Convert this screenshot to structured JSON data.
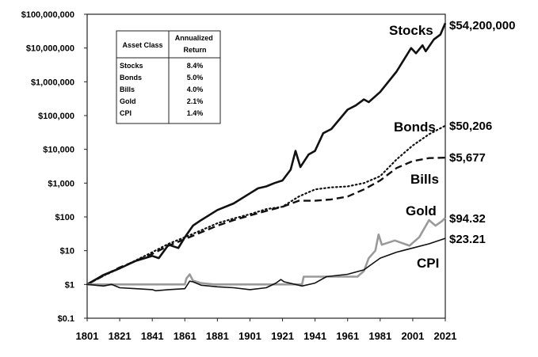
{
  "chart_data": {
    "type": "line",
    "title": "",
    "xlabel": "",
    "ylabel": "",
    "y_scale": "log",
    "ylim": [
      0.1,
      100000000
    ],
    "xlim": [
      1801,
      2021
    ],
    "grid": false,
    "x_ticks": [
      "1801",
      "1821",
      "1841",
      "1861",
      "1881",
      "1901",
      "1921",
      "1941",
      "1961",
      "1981",
      "2001",
      "2021"
    ],
    "y_ticks": [
      {
        "value": 100000000,
        "label": "$100,000,000"
      },
      {
        "value": 10000000,
        "label": "$10,000,000"
      },
      {
        "value": 1000000,
        "label": "$1,000,000"
      },
      {
        "value": 100000,
        "label": "$100,000"
      },
      {
        "value": 10000,
        "label": "$10,000"
      },
      {
        "value": 1000,
        "label": "$1,000"
      },
      {
        "value": 100,
        "label": "$100"
      },
      {
        "value": 10,
        "label": "$10"
      },
      {
        "value": 1,
        "label": "$1"
      },
      {
        "value": 0.1,
        "label": "$0.1"
      }
    ],
    "series": [
      {
        "name": "Stocks",
        "end_label": "$54,200,000",
        "color": "#111111",
        "style": "solid",
        "width": 2.6,
        "points": [
          [
            1801,
            1
          ],
          [
            1811,
            1.9
          ],
          [
            1821,
            3
          ],
          [
            1831,
            5
          ],
          [
            1841,
            7
          ],
          [
            1845,
            6
          ],
          [
            1851,
            15
          ],
          [
            1857,
            12
          ],
          [
            1861,
            25
          ],
          [
            1866,
            55
          ],
          [
            1871,
            80
          ],
          [
            1881,
            160
          ],
          [
            1891,
            250
          ],
          [
            1901,
            500
          ],
          [
            1906,
            700
          ],
          [
            1911,
            800
          ],
          [
            1916,
            1000
          ],
          [
            1921,
            1200
          ],
          [
            1926,
            2500
          ],
          [
            1929,
            9000
          ],
          [
            1932,
            3000
          ],
          [
            1937,
            7000
          ],
          [
            1941,
            9000
          ],
          [
            1946,
            30000
          ],
          [
            1951,
            40000
          ],
          [
            1961,
            150000
          ],
          [
            1966,
            200000
          ],
          [
            1971,
            300000
          ],
          [
            1974,
            250000
          ],
          [
            1981,
            500000
          ],
          [
            1991,
            2000000
          ],
          [
            2000,
            10000000
          ],
          [
            2003,
            7000000
          ],
          [
            2007,
            12000000
          ],
          [
            2009,
            8000000
          ],
          [
            2014,
            18000000
          ],
          [
            2018,
            25000000
          ],
          [
            2021,
            54200000
          ]
        ]
      },
      {
        "name": "Bonds",
        "end_label": "$50,206",
        "color": "#111111",
        "style": "dotted",
        "width": 2.2,
        "points": [
          [
            1801,
            1
          ],
          [
            1811,
            1.8
          ],
          [
            1821,
            3
          ],
          [
            1831,
            5.2
          ],
          [
            1841,
            9
          ],
          [
            1851,
            16
          ],
          [
            1861,
            25
          ],
          [
            1871,
            40
          ],
          [
            1881,
            65
          ],
          [
            1891,
            90
          ],
          [
            1901,
            120
          ],
          [
            1911,
            170
          ],
          [
            1921,
            200
          ],
          [
            1931,
            400
          ],
          [
            1941,
            650
          ],
          [
            1951,
            750
          ],
          [
            1961,
            800
          ],
          [
            1971,
            1000
          ],
          [
            1981,
            1600
          ],
          [
            1991,
            5000
          ],
          [
            2001,
            13000
          ],
          [
            2011,
            28000
          ],
          [
            2021,
            50206
          ]
        ]
      },
      {
        "name": "Bills",
        "end_label": "$5,677",
        "color": "#111111",
        "style": "dashed",
        "width": 2.4,
        "points": [
          [
            1801,
            1
          ],
          [
            1811,
            1.8
          ],
          [
            1821,
            3.2
          ],
          [
            1831,
            5
          ],
          [
            1841,
            8
          ],
          [
            1851,
            14
          ],
          [
            1861,
            22
          ],
          [
            1871,
            35
          ],
          [
            1881,
            55
          ],
          [
            1891,
            80
          ],
          [
            1901,
            110
          ],
          [
            1911,
            150
          ],
          [
            1921,
            200
          ],
          [
            1931,
            300
          ],
          [
            1941,
            300
          ],
          [
            1951,
            330
          ],
          [
            1961,
            400
          ],
          [
            1971,
            650
          ],
          [
            1981,
            1200
          ],
          [
            1991,
            2800
          ],
          [
            2001,
            4500
          ],
          [
            2011,
            5500
          ],
          [
            2021,
            5677
          ]
        ]
      },
      {
        "name": "Gold",
        "end_label": "$94.32",
        "color": "#9a9a9a",
        "style": "solid",
        "width": 2.6,
        "points": [
          [
            1801,
            1
          ],
          [
            1861,
            1
          ],
          [
            1862,
            1.5
          ],
          [
            1864,
            2
          ],
          [
            1866,
            1.3
          ],
          [
            1871,
            1.1
          ],
          [
            1879,
            1
          ],
          [
            1933,
            1
          ],
          [
            1934,
            1.7
          ],
          [
            1967,
            1.7
          ],
          [
            1971,
            2.5
          ],
          [
            1974,
            6
          ],
          [
            1978,
            10
          ],
          [
            1980,
            30
          ],
          [
            1982,
            15
          ],
          [
            1990,
            20
          ],
          [
            1999,
            14
          ],
          [
            2005,
            25
          ],
          [
            2011,
            80
          ],
          [
            2015,
            55
          ],
          [
            2019,
            75
          ],
          [
            2021,
            94.32
          ]
        ]
      },
      {
        "name": "CPI",
        "end_label": "$23.21",
        "color": "#111111",
        "style": "solid",
        "width": 1.6,
        "points": [
          [
            1801,
            1
          ],
          [
            1811,
            0.9
          ],
          [
            1816,
            1
          ],
          [
            1821,
            0.8
          ],
          [
            1831,
            0.75
          ],
          [
            1841,
            0.7
          ],
          [
            1843,
            0.65
          ],
          [
            1851,
            0.7
          ],
          [
            1861,
            0.75
          ],
          [
            1864,
            1.25
          ],
          [
            1866,
            1.2
          ],
          [
            1871,
            0.95
          ],
          [
            1881,
            0.85
          ],
          [
            1891,
            0.8
          ],
          [
            1901,
            0.7
          ],
          [
            1911,
            0.8
          ],
          [
            1917,
            1.1
          ],
          [
            1920,
            1.4
          ],
          [
            1922,
            1.2
          ],
          [
            1933,
            0.9
          ],
          [
            1941,
            1.1
          ],
          [
            1948,
            1.7
          ],
          [
            1961,
            2.0
          ],
          [
            1971,
            2.7
          ],
          [
            1981,
            6
          ],
          [
            1991,
            9
          ],
          [
            2001,
            12
          ],
          [
            2011,
            16
          ],
          [
            2021,
            23.21
          ]
        ]
      }
    ],
    "table": {
      "headers": [
        "Asset Class",
        "Annualized Return"
      ],
      "rows": [
        [
          "Stocks",
          "8.4%"
        ],
        [
          "Bonds",
          "5.0%"
        ],
        [
          "Bills",
          "4.0%"
        ],
        [
          "Gold",
          "2.1%"
        ],
        [
          "CPI",
          "1.4%"
        ]
      ]
    }
  }
}
